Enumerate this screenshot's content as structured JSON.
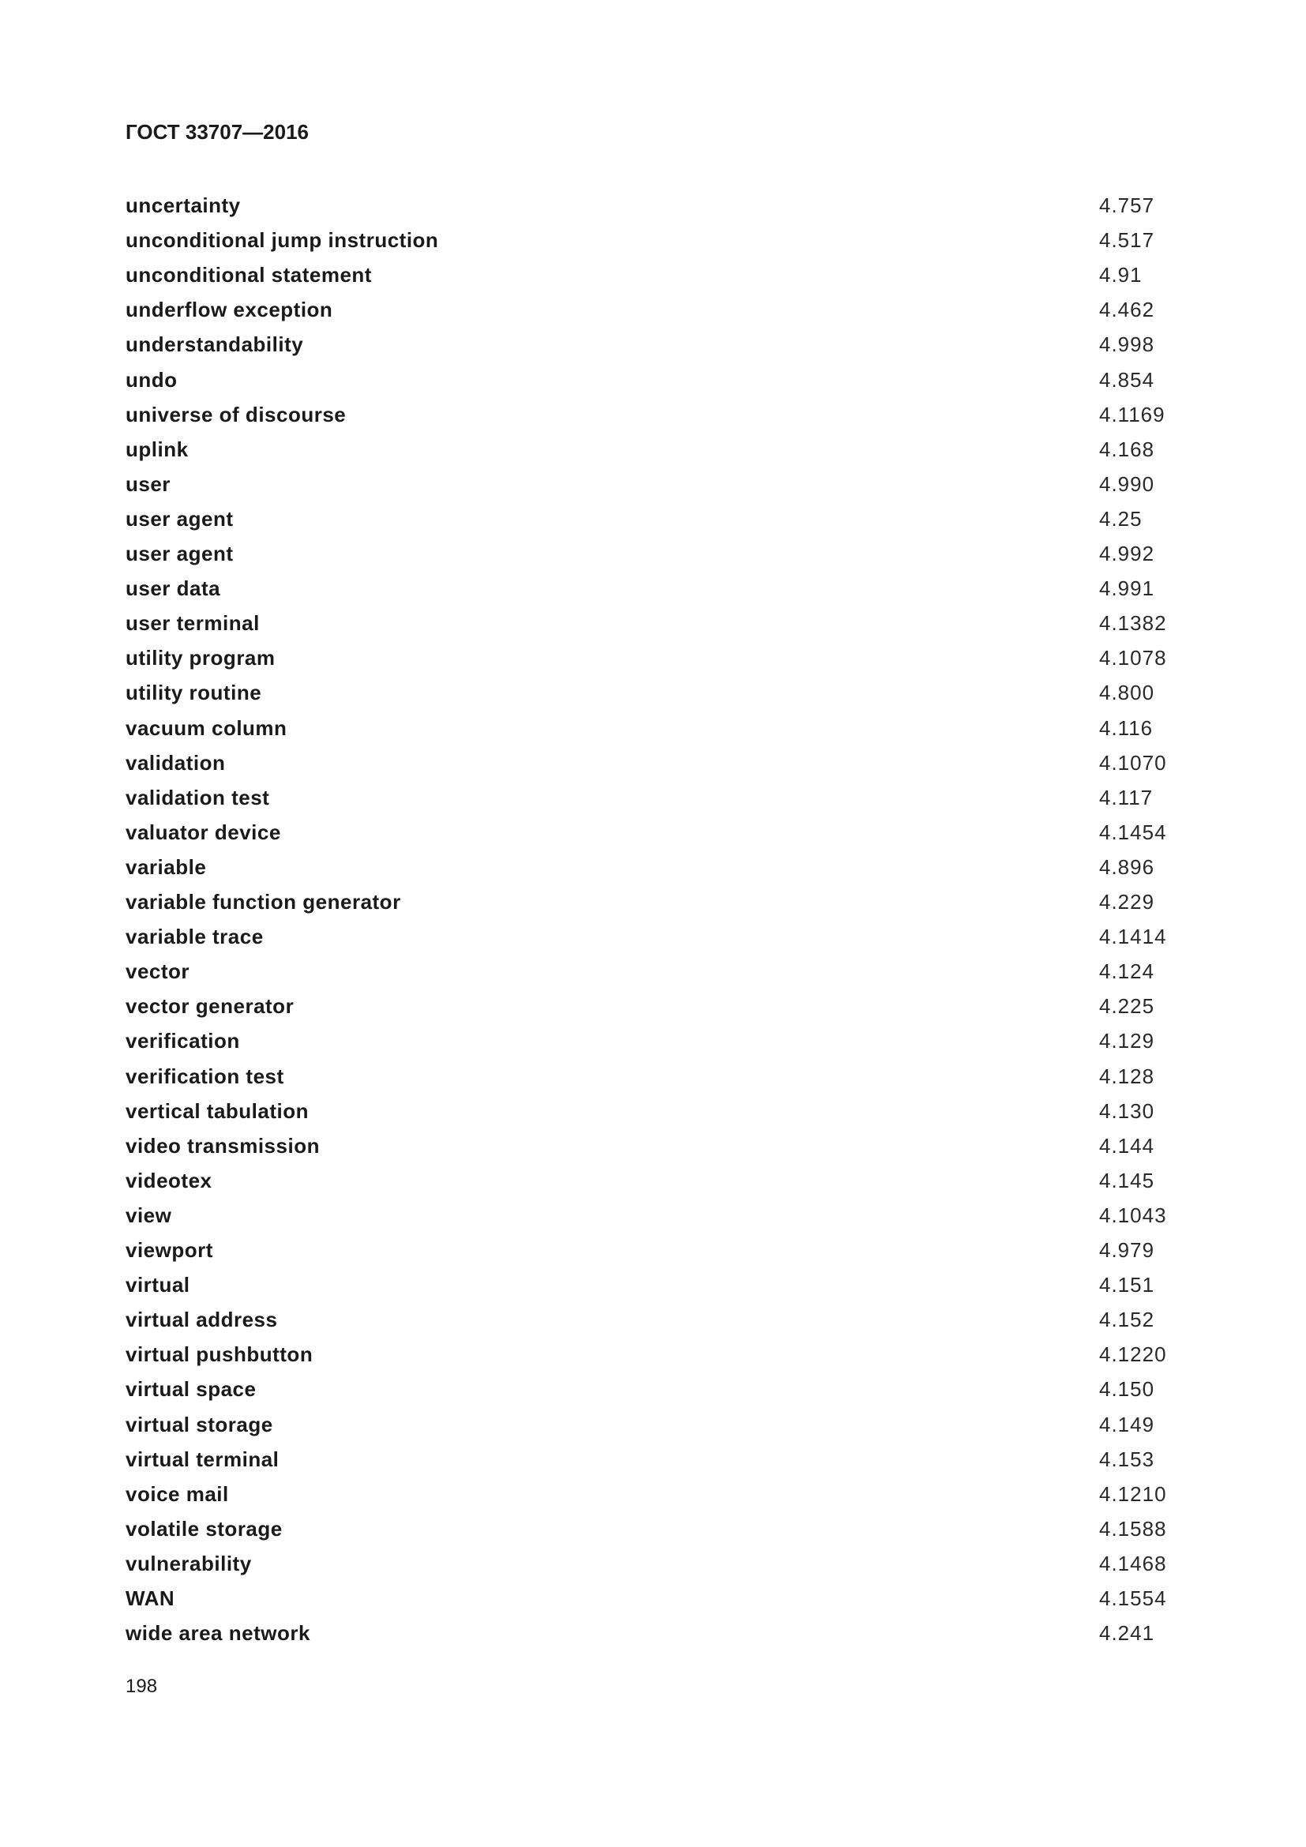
{
  "header": {
    "title": "ГОСТ 33707—2016"
  },
  "entries": [
    {
      "term": "uncertainty",
      "ref": "4.757"
    },
    {
      "term": "unconditional jump instruction",
      "ref": "4.517"
    },
    {
      "term": "unconditional statement",
      "ref": "4.91"
    },
    {
      "term": "underflow exception",
      "ref": "4.462"
    },
    {
      "term": "understandability",
      "ref": "4.998"
    },
    {
      "term": "undo",
      "ref": "4.854"
    },
    {
      "term": "universe of discourse",
      "ref": "4.1169"
    },
    {
      "term": "uplink",
      "ref": "4.168"
    },
    {
      "term": "user",
      "ref": "4.990"
    },
    {
      "term": "user agent",
      "ref": "4.25"
    },
    {
      "term": "user agent",
      "ref": "4.992"
    },
    {
      "term": "user data",
      "ref": "4.991"
    },
    {
      "term": "user terminal",
      "ref": "4.1382"
    },
    {
      "term": "utility program",
      "ref": "4.1078"
    },
    {
      "term": "utility routine",
      "ref": "4.800"
    },
    {
      "term": "vacuum column",
      "ref": "4.116"
    },
    {
      "term": "validation",
      "ref": "4.1070"
    },
    {
      "term": "validation test",
      "ref": "4.117"
    },
    {
      "term": "valuator device",
      "ref": "4.1454"
    },
    {
      "term": "variable",
      "ref": "4.896"
    },
    {
      "term": "variable function generator",
      "ref": "4.229"
    },
    {
      "term": "variable trace",
      "ref": "4.1414"
    },
    {
      "term": "vector",
      "ref": "4.124"
    },
    {
      "term": "vector generator",
      "ref": "4.225"
    },
    {
      "term": "verification",
      "ref": "4.129"
    },
    {
      "term": "verification test",
      "ref": "4.128"
    },
    {
      "term": "vertical tabulation",
      "ref": "4.130"
    },
    {
      "term": "video transmission",
      "ref": "4.144"
    },
    {
      "term": "videotex",
      "ref": "4.145"
    },
    {
      "term": "view",
      "ref": "4.1043"
    },
    {
      "term": "viewport",
      "ref": "4.979"
    },
    {
      "term": "virtual",
      "ref": "4.151"
    },
    {
      "term": "virtual address",
      "ref": "4.152"
    },
    {
      "term": "virtual pushbutton",
      "ref": "4.1220"
    },
    {
      "term": "virtual space",
      "ref": "4.150"
    },
    {
      "term": "virtual storage",
      "ref": "4.149"
    },
    {
      "term": "virtual terminal",
      "ref": "4.153"
    },
    {
      "term": "voice mail",
      "ref": "4.1210"
    },
    {
      "term": "volatile storage",
      "ref": "4.1588"
    },
    {
      "term": "vulnerability",
      "ref": "4.1468"
    },
    {
      "term": "WAN",
      "ref": "4.1554"
    },
    {
      "term": "wide area network",
      "ref": "4.241"
    }
  ],
  "footer": {
    "page_number": "198"
  }
}
